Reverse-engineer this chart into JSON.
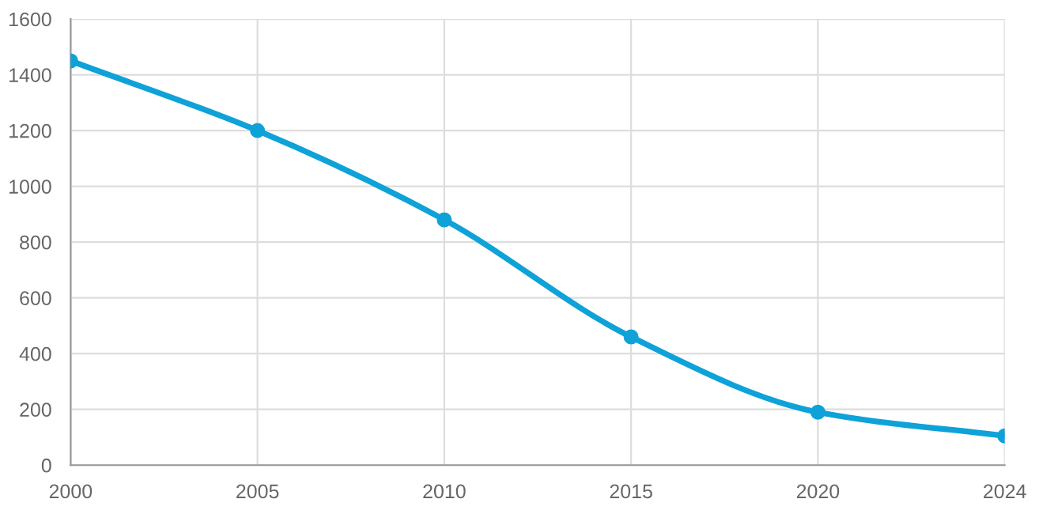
{
  "chart_data": {
    "type": "line",
    "categories": [
      "2000",
      "2005",
      "2010",
      "2015",
      "2020",
      "2024"
    ],
    "series": [
      {
        "color": "#0ea2d8",
        "values": [
          1450,
          1200,
          880,
          460,
          190,
          105
        ]
      }
    ],
    "ylim": [
      0,
      1600
    ],
    "yticks": [
      0,
      200,
      400,
      600,
      800,
      1000,
      1200,
      1400,
      1600
    ],
    "grid": true,
    "marker": "circle",
    "line_style": "solid",
    "legend": false
  }
}
